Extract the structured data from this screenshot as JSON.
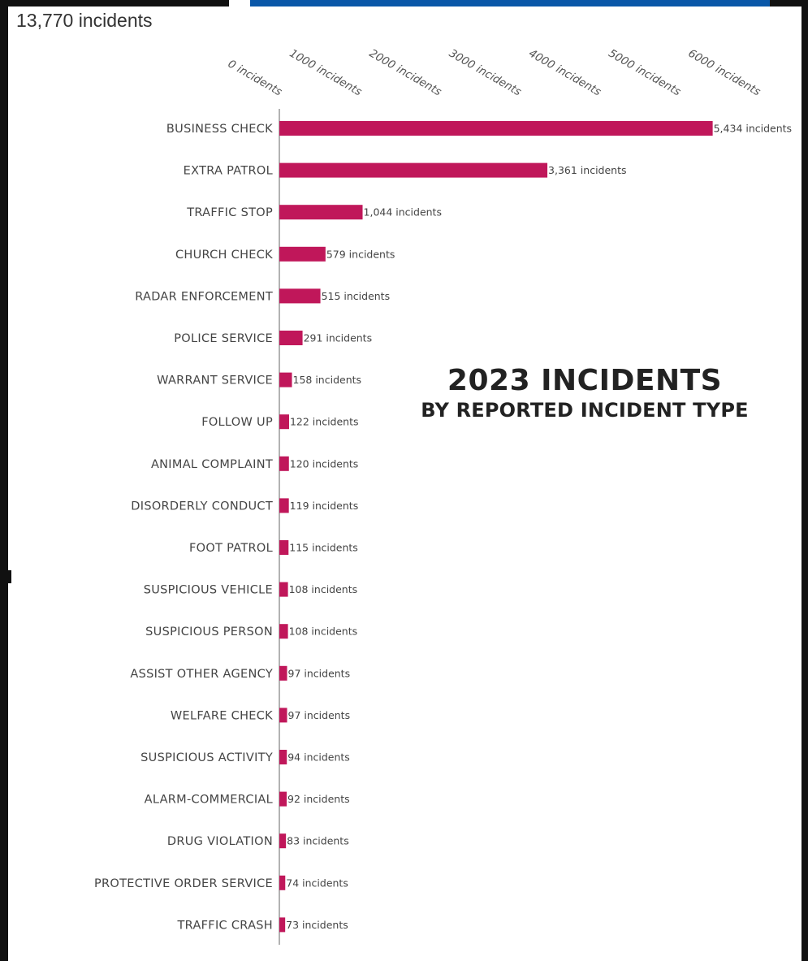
{
  "total_label": "13,770 incidents",
  "headline": {
    "line1": "2023 INCIDENTS",
    "line2": "BY REPORTED INCIDENT TYPE"
  },
  "colors": {
    "bar": "#c0175a",
    "axis": "#999999",
    "frame": "#111111",
    "top_accent": "#0a57a8"
  },
  "chart_data": {
    "type": "bar",
    "orientation": "horizontal",
    "title": "",
    "xlabel": "",
    "ylabel": "",
    "xlim": [
      0,
      6000
    ],
    "ticks": [
      0,
      1000,
      2000,
      3000,
      4000,
      5000,
      6000
    ],
    "tick_labels": [
      "0 incidents",
      "1000 incidents",
      "2000 incidents",
      "3000 incidents",
      "4000 incidents",
      "5000 incidents",
      "6000 incidents"
    ],
    "tick_position": "top",
    "grid": false,
    "categories": [
      "BUSINESS CHECK",
      "EXTRA PATROL",
      "TRAFFIC STOP",
      "CHURCH CHECK",
      "RADAR ENFORCEMENT",
      "POLICE SERVICE",
      "WARRANT SERVICE",
      "FOLLOW UP",
      "ANIMAL COMPLAINT",
      "DISORDERLY CONDUCT",
      "FOOT PATROL",
      "SUSPICIOUS VEHICLE",
      "SUSPICIOUS PERSON",
      "ASSIST OTHER AGENCY",
      "WELFARE CHECK",
      "SUSPICIOUS ACTIVITY",
      "ALARM-COMMERCIAL",
      "DRUG VIOLATION",
      "PROTECTIVE ORDER SERVICE",
      "TRAFFIC CRASH"
    ],
    "values": [
      5434,
      3361,
      1044,
      579,
      515,
      291,
      158,
      122,
      120,
      119,
      115,
      108,
      108,
      97,
      97,
      94,
      92,
      83,
      74,
      73
    ],
    "data_labels": [
      "5,434 incidents",
      "3,361 incidents",
      "1,044 incidents",
      "579 incidents",
      "515 incidents",
      "291 incidents",
      "158 incidents",
      "122 incidents",
      "120 incidents",
      "119 incidents",
      "115 incidents",
      "108 incidents",
      "108 incidents",
      "97 incidents",
      "97 incidents",
      "94 incidents",
      "92 incidents",
      "83 incidents",
      "74 incidents",
      "73 incidents"
    ]
  }
}
